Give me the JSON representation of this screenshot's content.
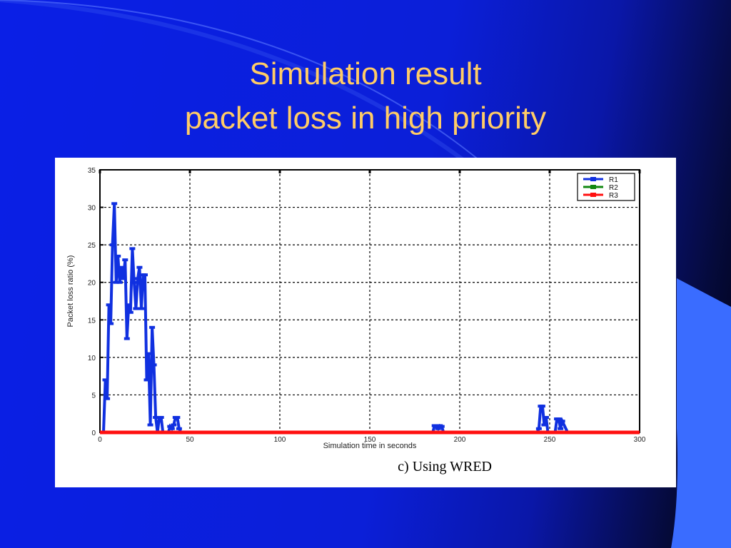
{
  "slide": {
    "title_line1": "Simulation result",
    "title_line2": "packet loss in high priority",
    "caption": "c) Using WRED"
  },
  "colors": {
    "background": "#0a1fe6",
    "title": "#ffcc66",
    "series_r1": "#1030e0",
    "series_r2": "#118811",
    "series_r3": "#ff1010"
  },
  "chart_data": {
    "type": "line",
    "title": "",
    "xlabel": "Simulation time in seconds",
    "ylabel": "Packet loss ratio (%)",
    "xlim": [
      0,
      300
    ],
    "ylim": [
      0,
      35
    ],
    "xticks": [
      0,
      50,
      100,
      150,
      200,
      250,
      300
    ],
    "yticks": [
      0,
      5,
      10,
      15,
      20,
      25,
      30,
      35
    ],
    "grid": true,
    "legend": "top-right",
    "series": [
      {
        "name": "R1",
        "color": "#1030e0",
        "x": [
          0,
          2,
          3,
          4,
          5,
          6,
          7,
          8,
          9,
          10,
          11,
          12,
          13,
          14,
          15,
          16,
          17,
          18,
          19,
          20,
          21,
          22,
          23,
          24,
          25,
          26,
          27,
          28,
          29,
          30,
          31,
          32,
          33,
          34,
          35,
          38,
          39,
          40,
          41,
          42,
          43,
          44,
          45,
          50,
          100,
          150,
          185,
          186,
          187,
          188,
          189,
          190,
          191,
          192,
          200,
          243,
          244,
          245,
          246,
          247,
          248,
          249,
          250,
          251,
          252,
          253,
          254,
          255,
          256,
          257,
          260,
          300
        ],
        "y": [
          0,
          0,
          7,
          4.5,
          17,
          14.5,
          25,
          30.5,
          20,
          23.5,
          20,
          22,
          20.5,
          23,
          12.5,
          17,
          16,
          24.5,
          20,
          16.5,
          20.5,
          22,
          16.5,
          21,
          21,
          7,
          10.5,
          1,
          14,
          9,
          2,
          0,
          2,
          2,
          0,
          0,
          0.8,
          0.5,
          1,
          2,
          2,
          0.5,
          0,
          0,
          0,
          0,
          0,
          0.9,
          0.9,
          0.5,
          0.9,
          0.8,
          0,
          0,
          0,
          0,
          0.5,
          3.5,
          3.5,
          1,
          2,
          0,
          0,
          0,
          0,
          0,
          1.8,
          1.8,
          0.5,
          1.5,
          0,
          0
        ]
      },
      {
        "name": "R2",
        "color": "#118811",
        "x": [
          0,
          300
        ],
        "y": [
          0,
          0
        ]
      },
      {
        "name": "R3",
        "color": "#ff1010",
        "x": [
          0,
          300
        ],
        "y": [
          0,
          0
        ]
      }
    ]
  }
}
